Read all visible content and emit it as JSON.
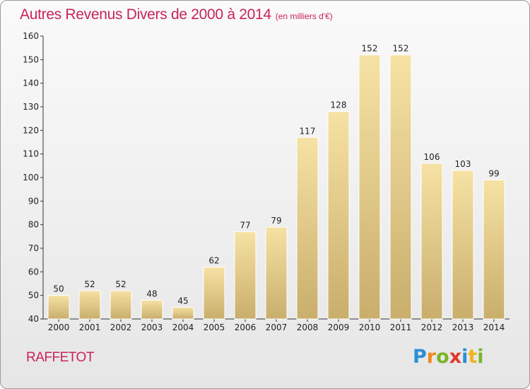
{
  "header": {
    "title": "Autres Revenus Divers de 2000 à 2014",
    "subtitle": "(en milliers d'€)"
  },
  "footer": {
    "place": "RAFFETOT",
    "logo": [
      "P",
      "r",
      "o",
      "x",
      "i",
      "t",
      "i"
    ]
  },
  "chart_data": {
    "type": "bar",
    "title": "Autres Revenus Divers de 2000 à 2014",
    "subtitle": "(en milliers d'€)",
    "categories": [
      "2000",
      "2001",
      "2002",
      "2003",
      "2004",
      "2005",
      "2006",
      "2007",
      "2008",
      "2009",
      "2010",
      "2011",
      "2012",
      "2013",
      "2014"
    ],
    "values": [
      50,
      52,
      52,
      48,
      45,
      62,
      77,
      79,
      117,
      128,
      152,
      152,
      106,
      103,
      99
    ],
    "ylim": [
      40,
      160
    ],
    "yticks": [
      40,
      50,
      60,
      70,
      80,
      90,
      100,
      110,
      120,
      130,
      140,
      150,
      160
    ],
    "grid": false,
    "bar_color": "#e8cf8a"
  }
}
